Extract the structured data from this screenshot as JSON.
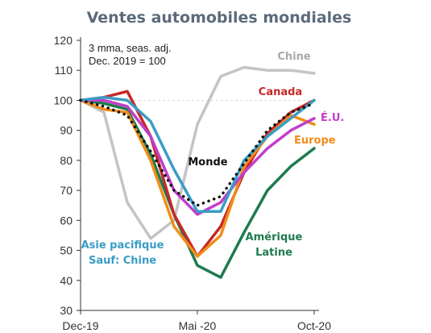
{
  "chart_data": {
    "type": "line",
    "title": "Ventes automobiles mondiales",
    "annotation_lines": [
      "3 mma, seas. adj.",
      "Dec. 2019 = 100"
    ],
    "y_ticks": [
      30,
      40,
      50,
      60,
      70,
      80,
      90,
      100,
      110,
      120
    ],
    "ylim": [
      30,
      120
    ],
    "x_tick_labels": [
      "Dec-19",
      "Mai -20",
      "Oct-20"
    ],
    "months": [
      "Dec-19",
      "Jan-20",
      "Feb-20",
      "Mar-20",
      "Apr-20",
      "May-20",
      "Jun-20",
      "Jul-20",
      "Aug-20",
      "Sep-20",
      "Oct-20"
    ],
    "grid": false,
    "series": [
      {
        "name": "Chine",
        "label_lines": [
          "Chine"
        ],
        "color": "#c4c4c4",
        "style": "solid",
        "values": [
          100,
          96,
          66,
          54,
          60,
          92,
          108,
          111,
          110,
          110,
          109
        ]
      },
      {
        "name": "Canada",
        "label_lines": [
          "Canada"
        ],
        "color": "#c62828",
        "style": "solid",
        "values": [
          100,
          101,
          103,
          88,
          62,
          48,
          58,
          76,
          89,
          96,
          100
        ]
      },
      {
        "name": "É.U.",
        "label_lines": [
          "É.U."
        ],
        "color": "#c13ec9",
        "style": "solid",
        "values": [
          100,
          100,
          98,
          88,
          70,
          62,
          66,
          76,
          84,
          90,
          94
        ]
      },
      {
        "name": "Europe",
        "label_lines": [
          "Europe"
        ],
        "color": "#f28c1a",
        "style": "solid",
        "values": [
          100,
          97,
          96,
          80,
          58,
          48,
          55,
          78,
          88,
          95,
          92
        ]
      },
      {
        "name": "Amérique Latine",
        "label_lines": [
          "Amérique",
          "Latine"
        ],
        "color": "#1e7a4e",
        "style": "solid",
        "values": [
          100,
          99,
          97,
          82,
          62,
          45,
          41,
          56,
          70,
          78,
          84
        ]
      },
      {
        "name": "Asie pacifique Sauf: Chine",
        "label_lines": [
          "Asie pacifique",
          "Sauf: Chine"
        ],
        "color": "#3a9dc4",
        "style": "solid",
        "values": [
          100,
          101,
          100,
          93,
          77,
          63,
          63,
          80,
          88,
          94,
          100
        ]
      },
      {
        "name": "Monde",
        "label_lines": [
          "Monde"
        ],
        "color": "#111111",
        "style": "dotted",
        "values": [
          100,
          98,
          95,
          83,
          70,
          65,
          68,
          79,
          90,
          96,
          99
        ]
      }
    ]
  }
}
